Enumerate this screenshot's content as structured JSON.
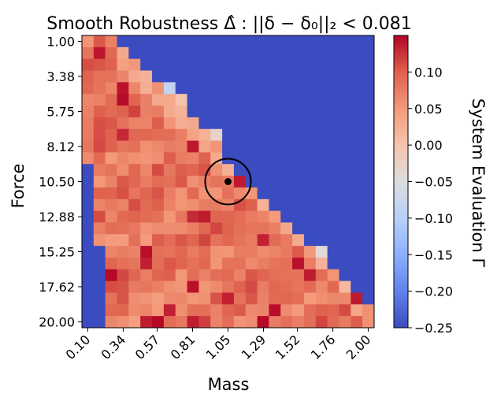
{
  "chart_data": {
    "type": "heatmap",
    "title": "Smooth Robustness Δ̂ : ||δ − δ₀||₂ < 0.081",
    "xlabel": "Mass",
    "ylabel": "Force",
    "colorbar_label": "System Evaluation Γ",
    "x_tick_labels": [
      "0.10",
      "0.34",
      "0.57",
      "0.81",
      "1.05",
      "1.29",
      "1.52",
      "1.76",
      "2.00"
    ],
    "y_tick_labels": [
      "1.00",
      "3.38",
      "5.75",
      "8.12",
      "10.50",
      "12.88",
      "15.25",
      "17.62",
      "20.00"
    ],
    "x_range": [
      0.1,
      2.0
    ],
    "y_range": [
      1.0,
      20.0
    ],
    "grid_size": [
      25,
      25
    ],
    "colormap": "coolwarm",
    "color_range": [
      -0.25,
      0.15
    ],
    "colorbar_ticks": [
      "0.10",
      "0.05",
      "0.00",
      "−0.05",
      "−0.10",
      "−0.15",
      "−0.20",
      "−0.25"
    ],
    "colorbar_tick_values": [
      0.1,
      0.05,
      0.0,
      -0.05,
      -0.1,
      -0.15,
      -0.2,
      -0.25
    ],
    "robust_region_value": 0.09,
    "unsafe_value": -0.25,
    "marker": {
      "mass": 1.05,
      "force": 10.5
    },
    "colors": {
      "low": "#3b4cc0",
      "mid": "#dddddd",
      "high": "#b40426"
    }
  }
}
